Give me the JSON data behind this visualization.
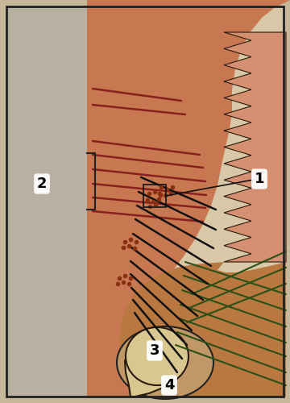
{
  "bg_outer": "#c8b89a",
  "bg_left_panel": "#b8b0a0",
  "bg_right_panel": "#d8c8a8",
  "tooth_color": "#c87850",
  "tooth_border": "#2a1a0a",
  "gingiva_color": "#c87850",
  "gingiva_border_color": "#2a1a0a",
  "rete_peg_color": "#d49070",
  "bone_region_color": "#c07848",
  "alveolar_bone_color": "#c8a870",
  "pdl_space_color": "#d8a878",
  "crown_color": "#d8c890",
  "crown_border": "#2a1a0a",
  "fiber_red": "#882020",
  "fiber_black": "#111111",
  "fiber_green": "#2a5018",
  "dot_color": "#883010",
  "label_fs": 13,
  "annot_box_color": "#111111",
  "bracket_color": "#222222"
}
